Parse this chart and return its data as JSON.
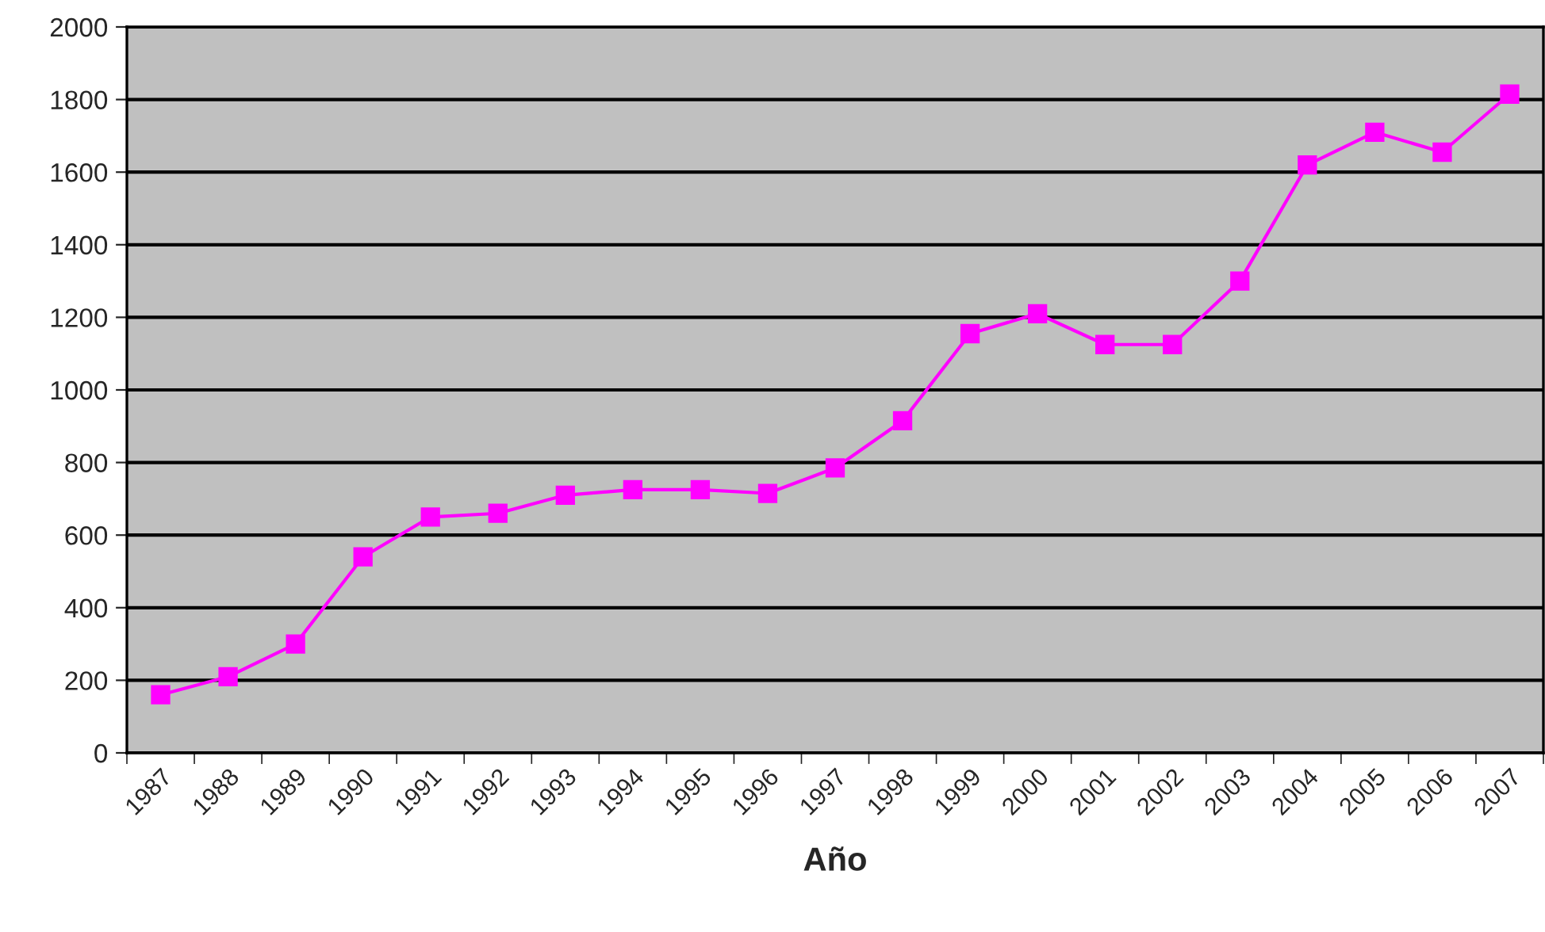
{
  "chart_data": {
    "type": "line",
    "xlabel": "Año",
    "categories": [
      "1987",
      "1988",
      "1989",
      "1990",
      "1991",
      "1992",
      "1993",
      "1994",
      "1995",
      "1996",
      "1997",
      "1998",
      "1999",
      "2000",
      "2001",
      "2002",
      "2003",
      "2004",
      "2005",
      "2006",
      "2007"
    ],
    "series": [
      {
        "color": "#ff00ff",
        "values": [
          160,
          210,
          300,
          540,
          650,
          660,
          710,
          725,
          725,
          715,
          785,
          915,
          1155,
          1210,
          1125,
          1125,
          1300,
          1620,
          1710,
          1655,
          1815
        ]
      }
    ],
    "ylim": [
      0,
      2000
    ],
    "yticks": [
      0,
      200,
      400,
      600,
      800,
      1000,
      1200,
      1400,
      1600,
      1800,
      2000
    ],
    "grid": "y",
    "marker": "square",
    "line_style": "solid",
    "legend": false
  }
}
